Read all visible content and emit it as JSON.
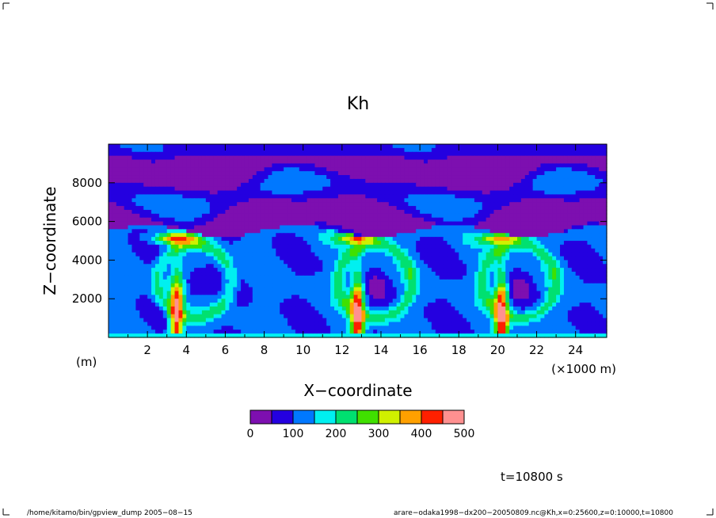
{
  "chart_data": {
    "type": "heatmap",
    "title": "Kh",
    "xlabel": "X−coordinate",
    "ylabel": "Z−coordinate",
    "x_unit_note": "(m)",
    "x_scale_note": "(×1000 m)",
    "xlim": [
      0,
      25.6
    ],
    "ylim": [
      0,
      10000
    ],
    "x_ticks": [
      2,
      4,
      6,
      8,
      10,
      12,
      14,
      16,
      18,
      20,
      22,
      24
    ],
    "y_ticks": [
      2000,
      4000,
      6000,
      8000
    ],
    "colorbar": {
      "levels": [
        0,
        50,
        100,
        150,
        200,
        250,
        300,
        350,
        400,
        450,
        500
      ],
      "tick_labels": [
        "0",
        "100",
        "200",
        "300",
        "400",
        "500"
      ],
      "tick_values": [
        0,
        100,
        200,
        300,
        400,
        500
      ],
      "colors": [
        "#7d0fb0",
        "#2400e0",
        "#0078ff",
        "#00f0f0",
        "#00e070",
        "#40e000",
        "#d0f000",
        "#ffa000",
        "#ff2000",
        "#ff9090"
      ]
    },
    "plumes_x_km": [
      3.5,
      12.8,
      20.2
    ],
    "boundary_layer_top_m": 5500,
    "time_label": "t=10800 s"
  },
  "footer": {
    "left": "/home/kitamo/bin/gpview_dump  2005−08−15",
    "right": "arare−odaka1998−dx200−20050809.nc@Kh,x=0:25600,z=0:10000,t=10800"
  }
}
